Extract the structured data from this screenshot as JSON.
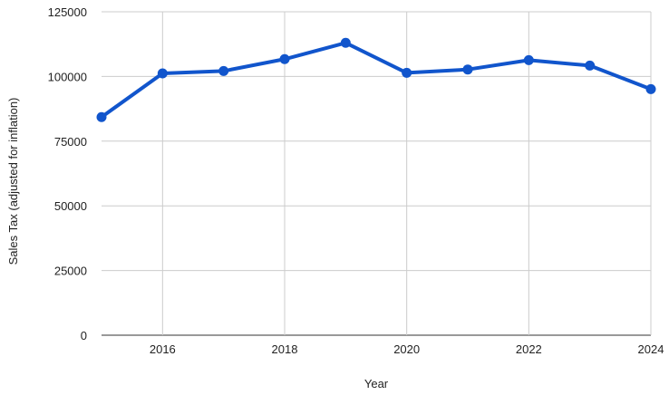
{
  "chart_data": {
    "type": "line",
    "title": "",
    "xlabel": "Year",
    "ylabel": "Sales Tax (adjusted for inflation)",
    "x": [
      2015,
      2016,
      2017,
      2018,
      2019,
      2020,
      2021,
      2022,
      2023,
      2024
    ],
    "series": [
      {
        "values": [
          84300,
          101200,
          102100,
          106700,
          113000,
          101400,
          102700,
          106300,
          104200,
          95100
        ],
        "color": "#1155cc"
      }
    ],
    "xlim": [
      2015,
      2024
    ],
    "ylim": [
      0,
      125000
    ],
    "xticks": [
      "2016",
      "2018",
      "2020",
      "2022",
      "2024"
    ],
    "yticks": [
      "0",
      "25000",
      "50000",
      "75000",
      "100000",
      "125000"
    ],
    "grid": true,
    "markers": true
  }
}
